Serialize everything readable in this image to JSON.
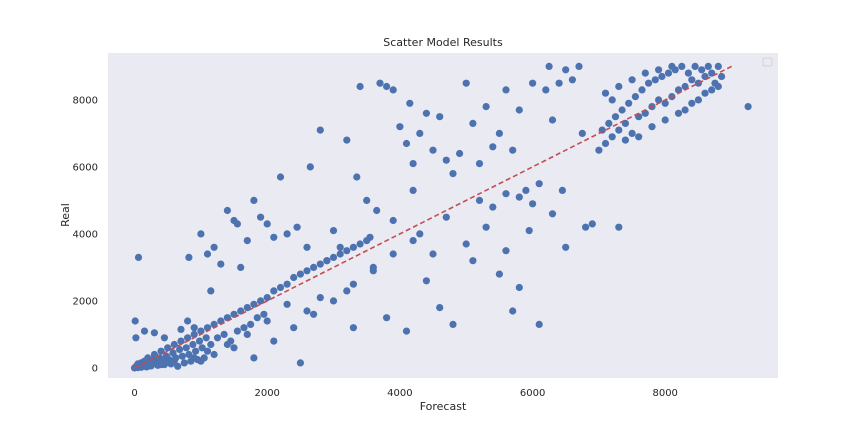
{
  "chart_data": {
    "type": "scatter",
    "title": "Scatter Model Results",
    "xlabel": "Forecast",
    "ylabel": "Real",
    "xlim": [
      -400,
      9700
    ],
    "ylim": [
      -300,
      9400
    ],
    "xticks": [
      0,
      2000,
      4000,
      6000,
      8000
    ],
    "yticks": [
      0,
      2000,
      4000,
      6000,
      8000
    ],
    "grid": false,
    "legend": "top-right (empty)",
    "colors": {
      "background": "#eaeaf2",
      "points": "#4c72b0",
      "reference_line": "#c44e52"
    },
    "reference_line": {
      "x": [
        0,
        9000
      ],
      "y": [
        0,
        9000
      ],
      "style": "dashed"
    },
    "series": [
      {
        "points": [
          [
            0,
            0
          ],
          [
            30,
            60
          ],
          [
            50,
            120
          ],
          [
            80,
            40
          ],
          [
            100,
            150
          ],
          [
            120,
            80
          ],
          [
            150,
            200
          ],
          [
            180,
            30
          ],
          [
            200,
            300
          ],
          [
            220,
            120
          ],
          [
            250,
            60
          ],
          [
            280,
            250
          ],
          [
            300,
            400
          ],
          [
            330,
            180
          ],
          [
            350,
            80
          ],
          [
            380,
            300
          ],
          [
            400,
            500
          ],
          [
            420,
            200
          ],
          [
            450,
            100
          ],
          [
            480,
            350
          ],
          [
            500,
            600
          ],
          [
            520,
            250
          ],
          [
            550,
            120
          ],
          [
            580,
            450
          ],
          [
            600,
            700
          ],
          [
            620,
            300
          ],
          [
            650,
            50
          ],
          [
            680,
            550
          ],
          [
            700,
            800
          ],
          [
            720,
            350
          ],
          [
            750,
            150
          ],
          [
            780,
            600
          ],
          [
            800,
            900
          ],
          [
            820,
            400
          ],
          [
            850,
            200
          ],
          [
            880,
            700
          ],
          [
            900,
            1000
          ],
          [
            920,
            500
          ],
          [
            950,
            250
          ],
          [
            980,
            800
          ],
          [
            1000,
            1100
          ],
          [
            1020,
            600
          ],
          [
            1050,
            300
          ],
          [
            1080,
            900
          ],
          [
            1100,
            1200
          ],
          [
            1150,
            700
          ],
          [
            1200,
            1300
          ],
          [
            1250,
            900
          ],
          [
            1300,
            1400
          ],
          [
            1350,
            1000
          ],
          [
            1400,
            1500
          ],
          [
            1450,
            800
          ],
          [
            1500,
            1600
          ],
          [
            1550,
            1100
          ],
          [
            1600,
            1700
          ],
          [
            1650,
            1200
          ],
          [
            1700,
            1800
          ],
          [
            1750,
            1300
          ],
          [
            1800,
            1900
          ],
          [
            1850,
            1500
          ],
          [
            1900,
            2000
          ],
          [
            1950,
            1600
          ],
          [
            2000,
            2100
          ],
          [
            2100,
            2300
          ],
          [
            2200,
            2400
          ],
          [
            2300,
            2500
          ],
          [
            2400,
            2700
          ],
          [
            2500,
            2800
          ],
          [
            2600,
            2900
          ],
          [
            2700,
            3000
          ],
          [
            2800,
            3100
          ],
          [
            2900,
            3200
          ],
          [
            3000,
            3300
          ],
          [
            3100,
            3400
          ],
          [
            3200,
            3500
          ],
          [
            3300,
            3600
          ],
          [
            3400,
            3700
          ],
          [
            3500,
            3800
          ],
          [
            10,
            1400
          ],
          [
            20,
            900
          ],
          [
            60,
            3300
          ],
          [
            150,
            1100
          ],
          [
            300,
            1050
          ],
          [
            450,
            900
          ],
          [
            700,
            1150
          ],
          [
            800,
            1400
          ],
          [
            900,
            1200
          ],
          [
            820,
            3300
          ],
          [
            1000,
            4000
          ],
          [
            1100,
            3400
          ],
          [
            1150,
            2300
          ],
          [
            1200,
            3600
          ],
          [
            1300,
            3100
          ],
          [
            1400,
            4700
          ],
          [
            1500,
            4400
          ],
          [
            1550,
            4300
          ],
          [
            1600,
            3000
          ],
          [
            1700,
            3800
          ],
          [
            1800,
            5000
          ],
          [
            1900,
            4500
          ],
          [
            2000,
            4300
          ],
          [
            2100,
            3900
          ],
          [
            2200,
            5700
          ],
          [
            2300,
            4000
          ],
          [
            2450,
            4200
          ],
          [
            2600,
            3600
          ],
          [
            2650,
            6000
          ],
          [
            2800,
            7100
          ],
          [
            2900,
            3200
          ],
          [
            3000,
            4100
          ],
          [
            3100,
            3600
          ],
          [
            3200,
            6800
          ],
          [
            3350,
            5700
          ],
          [
            3400,
            8400
          ],
          [
            3500,
            5000
          ],
          [
            3550,
            3900
          ],
          [
            3650,
            4700
          ],
          [
            3700,
            8500
          ],
          [
            3800,
            8400
          ],
          [
            3900,
            8300
          ],
          [
            4000,
            7200
          ],
          [
            4100,
            6700
          ],
          [
            4150,
            7900
          ],
          [
            4200,
            6100
          ],
          [
            4300,
            7000
          ],
          [
            4400,
            7600
          ],
          [
            4500,
            6500
          ],
          [
            4600,
            7500
          ],
          [
            4700,
            6200
          ],
          [
            4800,
            5800
          ],
          [
            4900,
            6400
          ],
          [
            5000,
            8500
          ],
          [
            5100,
            7300
          ],
          [
            5200,
            6100
          ],
          [
            5300,
            7800
          ],
          [
            5400,
            6600
          ],
          [
            5500,
            7000
          ],
          [
            5600,
            8300
          ],
          [
            5700,
            6500
          ],
          [
            5800,
            7700
          ],
          [
            5900,
            5300
          ],
          [
            6000,
            8500
          ],
          [
            6100,
            5500
          ],
          [
            6200,
            8300
          ],
          [
            6250,
            9000
          ],
          [
            6300,
            7400
          ],
          [
            6400,
            8500
          ],
          [
            6450,
            5300
          ],
          [
            6500,
            8900
          ],
          [
            6600,
            8600
          ],
          [
            6700,
            9000
          ],
          [
            6750,
            7000
          ],
          [
            7000,
            6500
          ],
          [
            7050,
            7100
          ],
          [
            7100,
            6700
          ],
          [
            7150,
            7300
          ],
          [
            7200,
            6900
          ],
          [
            7250,
            7500
          ],
          [
            7300,
            7100
          ],
          [
            7350,
            7700
          ],
          [
            7400,
            7300
          ],
          [
            7450,
            7900
          ],
          [
            7500,
            7000
          ],
          [
            7550,
            8100
          ],
          [
            7600,
            7500
          ],
          [
            7650,
            8300
          ],
          [
            7700,
            7600
          ],
          [
            7750,
            8500
          ],
          [
            7800,
            7800
          ],
          [
            7850,
            8600
          ],
          [
            7900,
            8000
          ],
          [
            7950,
            8700
          ],
          [
            8000,
            7900
          ],
          [
            8050,
            8800
          ],
          [
            8100,
            8100
          ],
          [
            8150,
            8900
          ],
          [
            8200,
            8300
          ],
          [
            8250,
            9000
          ],
          [
            8300,
            8400
          ],
          [
            8350,
            8800
          ],
          [
            8400,
            8600
          ],
          [
            8450,
            9000
          ],
          [
            8500,
            8500
          ],
          [
            8550,
            8900
          ],
          [
            8600,
            8700
          ],
          [
            8650,
            9000
          ],
          [
            8700,
            8800
          ],
          [
            8750,
            8500
          ],
          [
            8800,
            9000
          ],
          [
            8850,
            8700
          ],
          [
            7100,
            8200
          ],
          [
            7200,
            8000
          ],
          [
            7300,
            8400
          ],
          [
            7400,
            6800
          ],
          [
            7500,
            8600
          ],
          [
            7600,
            6900
          ],
          [
            7700,
            8800
          ],
          [
            7800,
            7200
          ],
          [
            7900,
            8900
          ],
          [
            8000,
            7400
          ],
          [
            8100,
            9000
          ],
          [
            8200,
            7600
          ],
          [
            8300,
            7700
          ],
          [
            8400,
            7900
          ],
          [
            8500,
            8000
          ],
          [
            8600,
            8200
          ],
          [
            8700,
            8300
          ],
          [
            8800,
            8400
          ],
          [
            9250,
            7800
          ],
          [
            2500,
            150
          ],
          [
            3300,
            1200
          ],
          [
            3800,
            1500
          ],
          [
            4100,
            1100
          ],
          [
            4400,
            2600
          ],
          [
            4500,
            3400
          ],
          [
            4600,
            1800
          ],
          [
            4800,
            1300
          ],
          [
            5000,
            3700
          ],
          [
            5100,
            3200
          ],
          [
            5300,
            4200
          ],
          [
            5500,
            2800
          ],
          [
            5600,
            3500
          ],
          [
            5700,
            1700
          ],
          [
            5800,
            2400
          ],
          [
            5950,
            4100
          ],
          [
            6100,
            1300
          ],
          [
            6300,
            4600
          ],
          [
            6500,
            3600
          ],
          [
            6800,
            4200
          ],
          [
            6900,
            4300
          ],
          [
            7300,
            4200
          ],
          [
            5200,
            5000
          ],
          [
            5400,
            4800
          ],
          [
            5600,
            5200
          ],
          [
            5800,
            5100
          ],
          [
            6000,
            4900
          ],
          [
            4300,
            4000
          ],
          [
            4200,
            5300
          ],
          [
            3900,
            4400
          ],
          [
            4700,
            4500
          ],
          [
            3600,
            2900
          ],
          [
            3200,
            2300
          ],
          [
            2800,
            2100
          ],
          [
            2600,
            1700
          ],
          [
            2300,
            1900
          ],
          [
            2000,
            1400
          ],
          [
            1700,
            1000
          ],
          [
            1400,
            700
          ],
          [
            1100,
            500
          ],
          [
            900,
            300
          ],
          [
            600,
            200
          ],
          [
            400,
            100
          ],
          [
            200,
            50
          ],
          [
            100,
            20
          ],
          [
            50,
            10
          ],
          [
            1000,
            200
          ],
          [
            1200,
            400
          ],
          [
            1500,
            600
          ],
          [
            1800,
            300
          ],
          [
            2100,
            800
          ],
          [
            2400,
            1200
          ],
          [
            2700,
            1600
          ],
          [
            3000,
            2000
          ],
          [
            3300,
            2500
          ],
          [
            3600,
            3000
          ],
          [
            3900,
            3400
          ],
          [
            4200,
            3800
          ]
        ]
      }
    ]
  }
}
